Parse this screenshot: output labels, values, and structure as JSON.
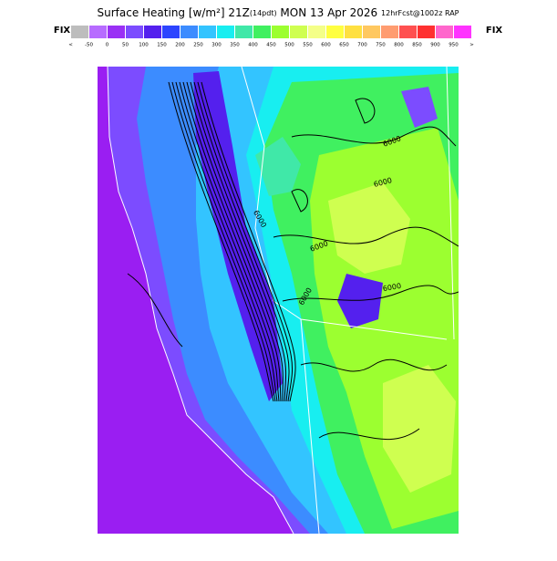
{
  "header": {
    "title_main": "Surface Heating [w/m²] 21Z",
    "title_small": "(14pdt)",
    "title_date": " MON 13 Apr 2026 ",
    "title_model": "12hrFcst@1002z RAP",
    "left_label": "FIX",
    "right_label": "FIX"
  },
  "colorbar": {
    "colors": [
      "#bdbdbd",
      "#b76cff",
      "#9a30f5",
      "#7c4cff",
      "#5420ee",
      "#2c44ff",
      "#3c8cff",
      "#33c4ff",
      "#18eef0",
      "#40e8a8",
      "#40f060",
      "#9cff30",
      "#cfff50",
      "#f4ff88",
      "#ffff40",
      "#ffe040",
      "#ffc860",
      "#ff9c70",
      "#ff5050",
      "#ff3030",
      "#ff66cc",
      "#ff33ff"
    ],
    "labels": [
      "<",
      "-50",
      "0",
      "50",
      "100",
      "150",
      "200",
      "250",
      "300",
      "350",
      "400",
      "450",
      "500",
      "550",
      "600",
      "650",
      "700",
      "750",
      "800",
      "850",
      "900",
      "950",
      ">"
    ]
  },
  "map": {
    "contour_labels": [
      "6000",
      "6000",
      "6000",
      "6000",
      "6000",
      "6000"
    ]
  }
}
